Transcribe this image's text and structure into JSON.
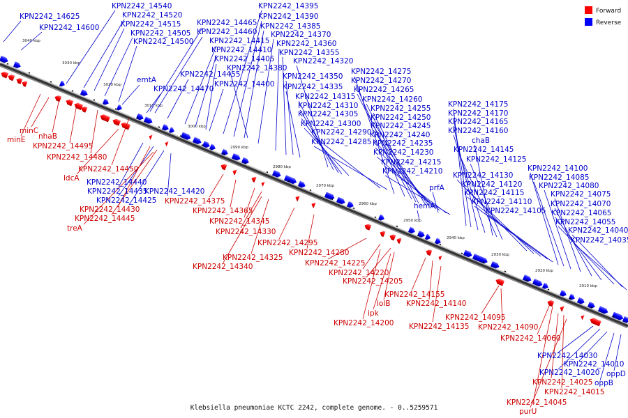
{
  "caption": "Klebsiella pneumoniae KCTC 2242, complete genome. - 0..5259571",
  "legend": [
    {
      "label": "Forward",
      "color": "#ff0000"
    },
    {
      "label": "Reverse",
      "color": "#0000ff"
    }
  ],
  "colors": {
    "forward": "#ff0000",
    "reverse": "#0000ff",
    "backbone": "#555555"
  },
  "ticks": [
    "3040 kbp",
    "3030 kbp",
    "3020 kbp",
    "3010 kbp",
    "3000 kbp",
    "2990 kbp",
    "2980 kbp",
    "2970 kbp",
    "2960 kbp",
    "2950 kbp",
    "2940 kbp",
    "2930 kbp",
    "2920 kbp",
    "2910 kbp"
  ],
  "reverse_labels": [
    "KPN2242_14625",
    "KPN2242_14600",
    "KPN2242_14540",
    "KPN2242_14520",
    "KPN2242_14515",
    "KPN2242_14505",
    "KPN2242_14500",
    "emtA",
    "KPN2242_14470",
    "KPN2242_14465",
    "KPN2242_14460",
    "KPN2242_14455",
    "KPN2242_14415",
    "KPN2242_14410",
    "KPN2242_14405",
    "KPN2242_14400",
    "KPN2242_14395",
    "KPN2242_14390",
    "KPN2242_14385",
    "KPN2242_14380",
    "KPN2242_14370",
    "KPN2242_14360",
    "KPN2242_14355",
    "KPN2242_14350",
    "KPN2242_14335",
    "KPN2242_14320",
    "KPN2242_14315",
    "KPN2242_14310",
    "KPN2242_14305",
    "KPN2242_14300",
    "KPN2242_14290",
    "KPN2242_14285",
    "KPN2242_14275",
    "KPN2242_14270",
    "KPN2242_14265",
    "KPN2242_14260",
    "KPN2242_14255",
    "KPN2242_14250",
    "KPN2242_14245",
    "KPN2242_14240",
    "KPN2242_14235",
    "KPN2242_14230",
    "KPN2242_14215",
    "KPN2242_14210",
    "prfA",
    "hemA",
    "KPN2242_14175",
    "KPN2242_14170",
    "KPN2242_14165",
    "KPN2242_14160",
    "chaB",
    "KPN2242_14145",
    "KPN2242_14125",
    "KPN2242_14130",
    "KPN2242_14120",
    "KPN2242_14115",
    "KPN2242_14110",
    "KPN2242_14105",
    "KPN2242_14100",
    "KPN2242_14085",
    "KPN2242_14080",
    "KPN2242_14075",
    "KPN2242_14070",
    "KPN2242_14065",
    "KPN2242_14055",
    "KPN2242_14040",
    "KPN2242_14035",
    "KPN2242_14440",
    "KPN2242_14435",
    "KPN2242_14425",
    "KPN2242_14420",
    "KPN2242_14030",
    "KPN2242_14020",
    "KPN2242_14010",
    "oppD",
    "oppB"
  ],
  "forward_labels": [
    "minC",
    "minE",
    "nhaB",
    "KPN2242_14495",
    "KPN2242_14480",
    "KPN2242_14450",
    "ldcA",
    "KPN2242_14430",
    "KPN2242_14445",
    "treA",
    "KPN2242_14375",
    "KPN2242_14365",
    "KPN2242_14345",
    "KPN2242_14330",
    "KPN2242_14295",
    "KPN2242_14340",
    "KPN2242_14325",
    "KPN2242_14280",
    "KPN2242_14225",
    "KPN2242_14220",
    "KPN2242_14205",
    "KPN2242_14155",
    "KPN2242_14140",
    "lolB",
    "ipk",
    "KPN2242_14200",
    "KPN2242_14135",
    "KPN2242_14095",
    "KPN2242_14090",
    "KPN2242_14060",
    "KPN2242_14025",
    "KPN2242_14015",
    "KPN2242_14045",
    "purU"
  ]
}
